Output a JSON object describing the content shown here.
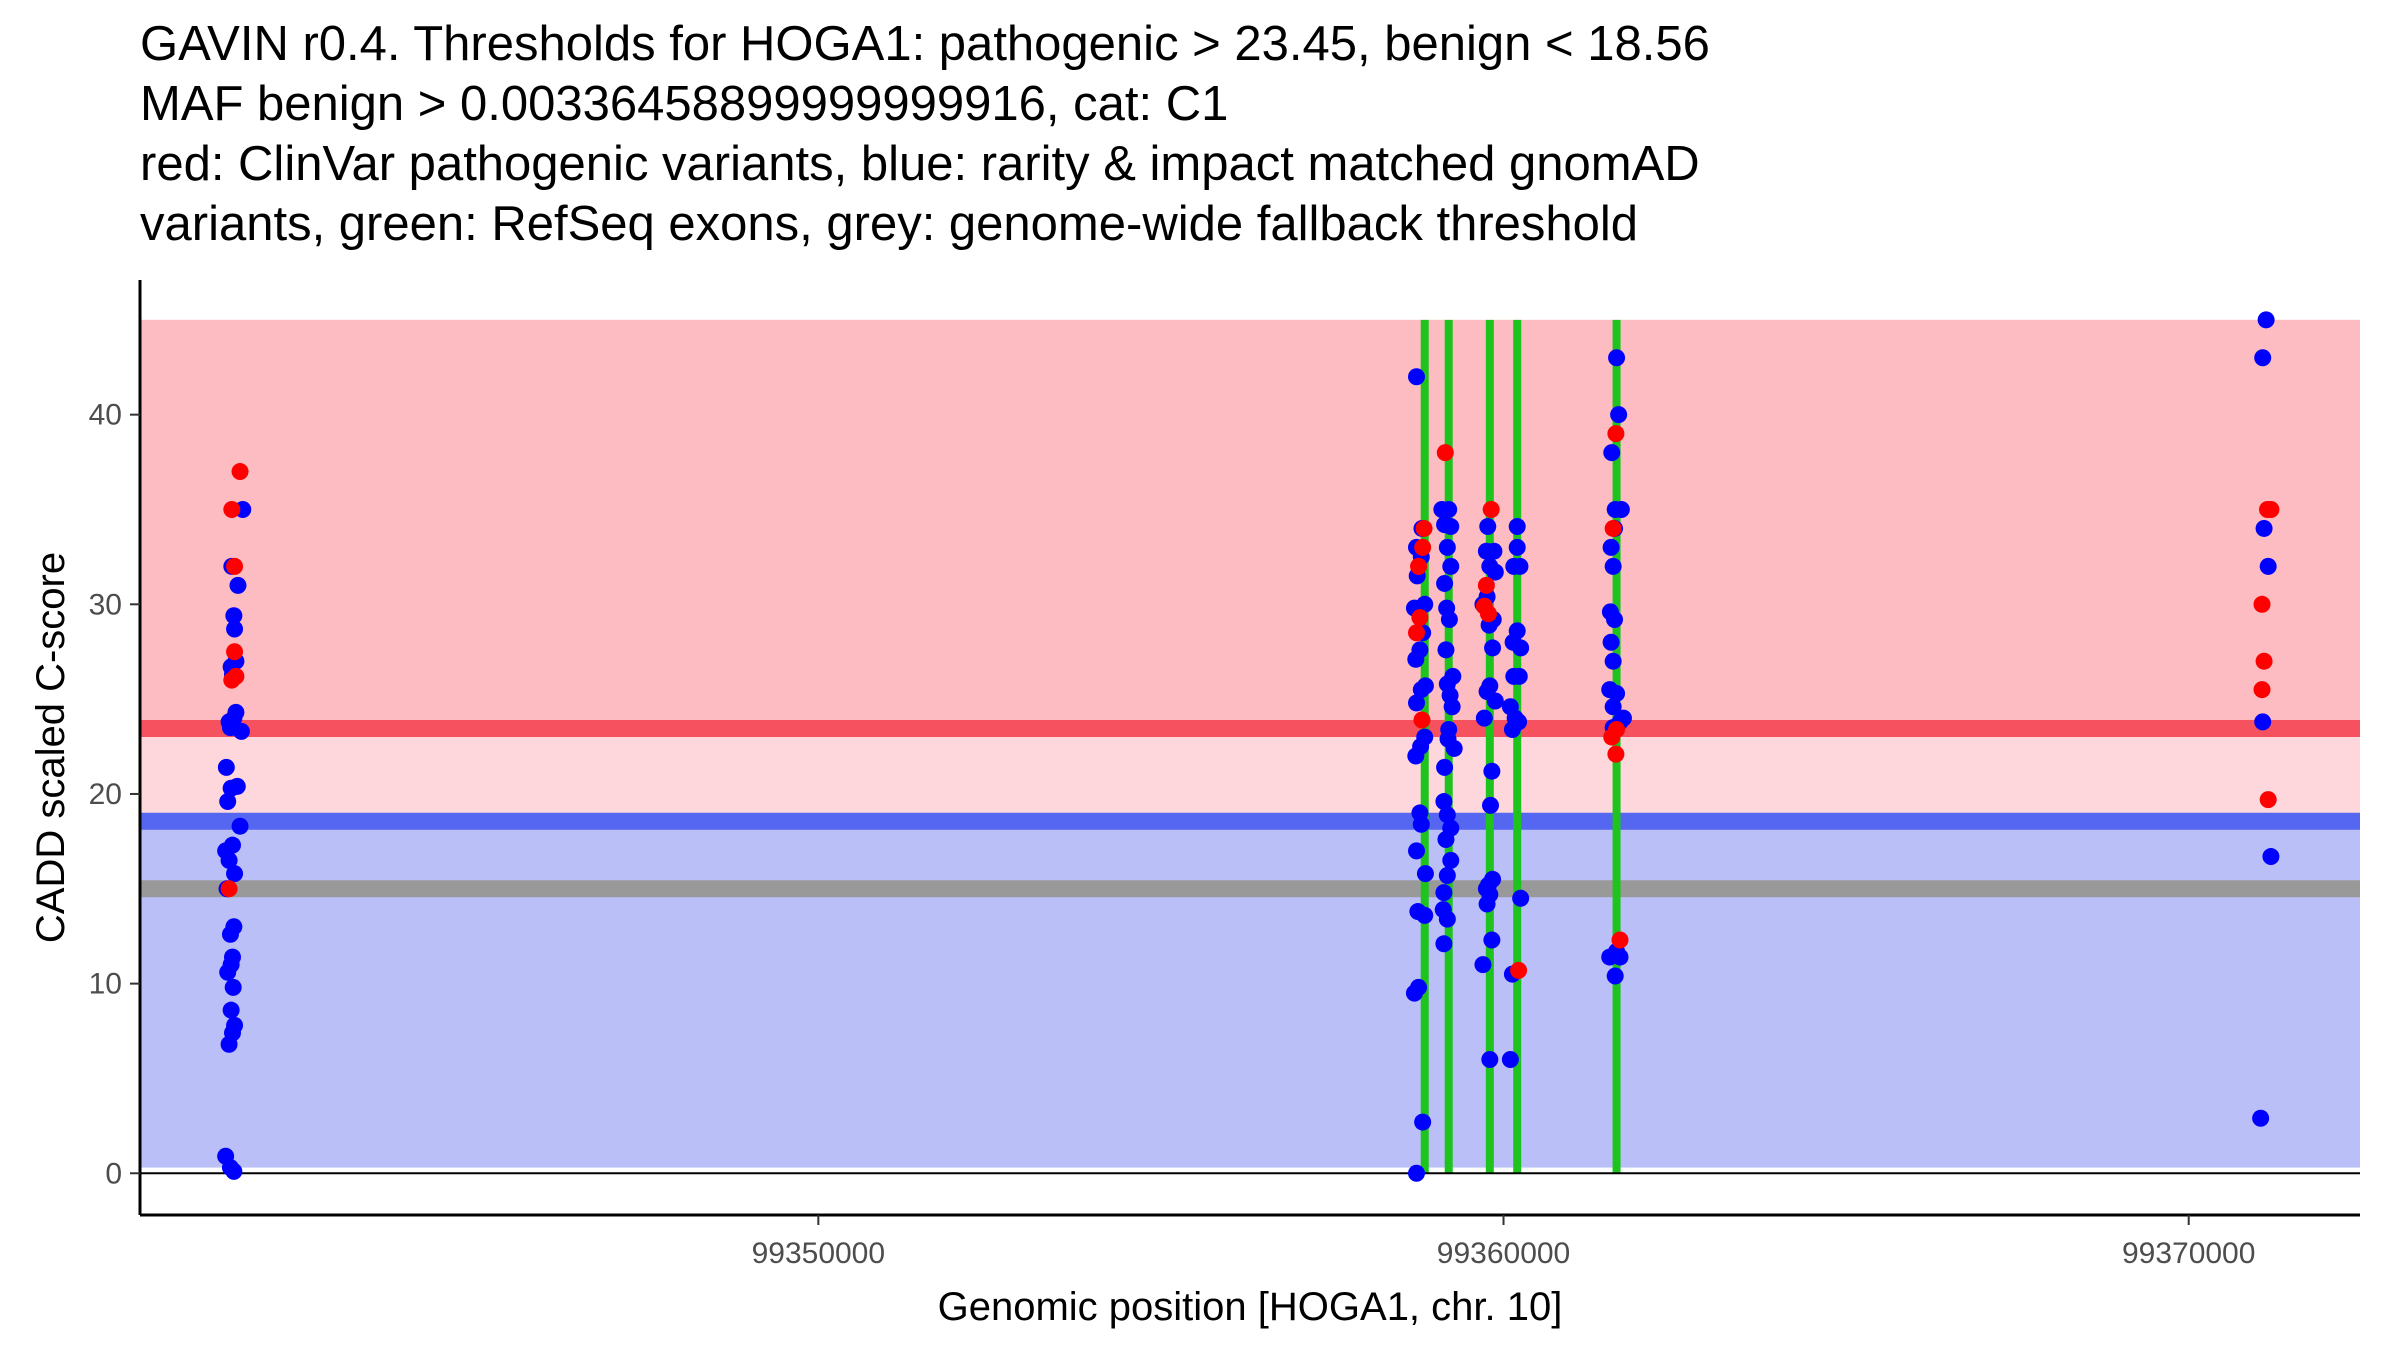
{
  "chart_data": {
    "type": "scatter",
    "title_lines": [
      "GAVIN r0.4. Thresholds for HOGA1: pathogenic > 23.45, benign < 18.56",
      "MAF benign > 0.00336458899999999916, cat: C1",
      "red: ClinVar pathogenic variants, blue: rarity & impact matched gnomAD",
      "variants, green: RefSeq exons, grey: genome-wide fallback threshold"
    ],
    "xlabel": "Genomic position [HOGA1, chr. 10]",
    "ylabel": "CADD scaled C-score",
    "xlim": [
      99340100,
      99372500
    ],
    "ylim": [
      -2.2,
      47.1
    ],
    "xticks": [
      99350000,
      99360000,
      99370000
    ],
    "yticks": [
      0,
      10,
      20,
      30,
      40
    ],
    "regions": [
      {
        "name": "pathogenic-region",
        "from": 23.45,
        "to": 45,
        "color": "#fcbcc1"
      },
      {
        "name": "intermediate-region",
        "from": 18.56,
        "to": 23.45,
        "color": "#fed7dc"
      },
      {
        "name": "benign-region",
        "from": 0.3,
        "to": 18.56,
        "color": "#babff8"
      }
    ],
    "x_span": [
      99340100,
      99372500
    ],
    "thresholds": [
      {
        "name": "pathogenic-threshold",
        "value": 23.45,
        "color": "#f5515f"
      },
      {
        "name": "benign-threshold",
        "value": 18.56,
        "color": "#5566f0"
      },
      {
        "name": "fallback-threshold",
        "value": 15.0,
        "color": "#999999"
      }
    ],
    "exons": {
      "positions": [
        99358850,
        99359200,
        99359800,
        99360200,
        99361650
      ],
      "ymin": 0,
      "ymax": 45,
      "color": "#1ec31e"
    },
    "series": [
      {
        "name": "gnomAD matched variants",
        "color": "#0000ff",
        "points": [
          [
            99341350,
            0.9
          ],
          [
            99341420,
            0.3
          ],
          [
            99341470,
            0.1
          ],
          [
            99341400,
            6.8
          ],
          [
            99341450,
            7.4
          ],
          [
            99341480,
            7.8
          ],
          [
            99341430,
            8.6
          ],
          [
            99341460,
            9.8
          ],
          [
            99341380,
            10.6
          ],
          [
            99341430,
            11.0
          ],
          [
            99341450,
            11.4
          ],
          [
            99341420,
            12.6
          ],
          [
            99341470,
            13.0
          ],
          [
            99341370,
            15.0
          ],
          [
            99341480,
            15.8
          ],
          [
            99341400,
            16.5
          ],
          [
            99341350,
            17.0
          ],
          [
            99341450,
            17.3
          ],
          [
            99341380,
            19.6
          ],
          [
            99341430,
            20.3
          ],
          [
            99341520,
            20.4
          ],
          [
            99341560,
            18.3
          ],
          [
            99341360,
            21.4
          ],
          [
            99341420,
            23.5
          ],
          [
            99341580,
            23.3
          ],
          [
            99341470,
            24.0
          ],
          [
            99341400,
            23.8
          ],
          [
            99341500,
            24.3
          ],
          [
            99341450,
            26.3
          ],
          [
            99341430,
            26.7
          ],
          [
            99341500,
            27.0
          ],
          [
            99341480,
            28.7
          ],
          [
            99341470,
            29.4
          ],
          [
            99341530,
            31.0
          ],
          [
            99341440,
            32.0
          ],
          [
            99341600,
            35.0
          ],
          [
            99358730,
            0.0
          ],
          [
            99358820,
            2.7
          ],
          [
            99358700,
            9.5
          ],
          [
            99358760,
            9.8
          ],
          [
            99358750,
            13.8
          ],
          [
            99358850,
            13.6
          ],
          [
            99358860,
            15.8
          ],
          [
            99358730,
            17.0
          ],
          [
            99358800,
            18.4
          ],
          [
            99358780,
            19.0
          ],
          [
            99358720,
            22.0
          ],
          [
            99358790,
            22.5
          ],
          [
            99358850,
            23.0
          ],
          [
            99358730,
            24.8
          ],
          [
            99358800,
            25.5
          ],
          [
            99358860,
            25.7
          ],
          [
            99358720,
            27.1
          ],
          [
            99358780,
            27.6
          ],
          [
            99358820,
            28.5
          ],
          [
            99358700,
            29.8
          ],
          [
            99358850,
            30.0
          ],
          [
            99358740,
            31.5
          ],
          [
            99358800,
            32.5
          ],
          [
            99358730,
            33.0
          ],
          [
            99358810,
            34.0
          ],
          [
            99358730,
            42.0
          ],
          [
            99359130,
            12.1
          ],
          [
            99359180,
            13.4
          ],
          [
            99359120,
            13.9
          ],
          [
            99359130,
            14.8
          ],
          [
            99359180,
            15.7
          ],
          [
            99359230,
            16.5
          ],
          [
            99359160,
            17.6
          ],
          [
            99359230,
            18.2
          ],
          [
            99359180,
            18.9
          ],
          [
            99359130,
            19.6
          ],
          [
            99359140,
            21.4
          ],
          [
            99359280,
            22.4
          ],
          [
            99359190,
            22.9
          ],
          [
            99359200,
            23.4
          ],
          [
            99359250,
            24.6
          ],
          [
            99359220,
            25.2
          ],
          [
            99359180,
            25.8
          ],
          [
            99359260,
            26.2
          ],
          [
            99359160,
            27.6
          ],
          [
            99359210,
            29.2
          ],
          [
            99359170,
            29.8
          ],
          [
            99359140,
            31.1
          ],
          [
            99359230,
            32.0
          ],
          [
            99359180,
            33.0
          ],
          [
            99359140,
            34.2
          ],
          [
            99359230,
            34.1
          ],
          [
            99359200,
            35.0
          ],
          [
            99359100,
            35.0
          ],
          [
            99359800,
            6.0
          ],
          [
            99359700,
            11.0
          ],
          [
            99359830,
            12.3
          ],
          [
            99359760,
            14.2
          ],
          [
            99359840,
            15.5
          ],
          [
            99359800,
            14.7
          ],
          [
            99359750,
            15.0
          ],
          [
            99359780,
            15.2
          ],
          [
            99359810,
            19.4
          ],
          [
            99359830,
            21.2
          ],
          [
            99359720,
            24.0
          ],
          [
            99359880,
            24.9
          ],
          [
            99359760,
            25.4
          ],
          [
            99359800,
            25.7
          ],
          [
            99359840,
            27.7
          ],
          [
            99359790,
            28.9
          ],
          [
            99359850,
            29.2
          ],
          [
            99359700,
            30.0
          ],
          [
            99359760,
            30.4
          ],
          [
            99359880,
            31.7
          ],
          [
            99359800,
            32.0
          ],
          [
            99359750,
            32.8
          ],
          [
            99359860,
            32.8
          ],
          [
            99359770,
            34.1
          ],
          [
            99360100,
            6.0
          ],
          [
            99360130,
            10.5
          ],
          [
            99360250,
            14.5
          ],
          [
            99360130,
            23.4
          ],
          [
            99360220,
            23.8
          ],
          [
            99360170,
            24.0
          ],
          [
            99360100,
            24.6
          ],
          [
            99360230,
            26.2
          ],
          [
            99360150,
            26.2
          ],
          [
            99360250,
            27.7
          ],
          [
            99360140,
            28.0
          ],
          [
            99360200,
            28.6
          ],
          [
            99360150,
            32.0
          ],
          [
            99360240,
            32.0
          ],
          [
            99360200,
            33.0
          ],
          [
            99360200,
            34.1
          ],
          [
            99361550,
            11.4
          ],
          [
            99361630,
            10.4
          ],
          [
            99361700,
            11.4
          ],
          [
            99361650,
            11.7
          ],
          [
            99361600,
            23.5
          ],
          [
            99361700,
            23.8
          ],
          [
            99361750,
            24.0
          ],
          [
            99361600,
            24.6
          ],
          [
            99361650,
            25.3
          ],
          [
            99361550,
            25.5
          ],
          [
            99361600,
            27.0
          ],
          [
            99361570,
            28.0
          ],
          [
            99361620,
            29.2
          ],
          [
            99361560,
            29.6
          ],
          [
            99361600,
            32.0
          ],
          [
            99361570,
            33.0
          ],
          [
            99361620,
            34.0
          ],
          [
            99361630,
            35.0
          ],
          [
            99361720,
            35.0
          ],
          [
            99361580,
            38.0
          ],
          [
            99361680,
            40.0
          ],
          [
            99361650,
            43.0
          ],
          [
            99371050,
            2.9
          ],
          [
            99371200,
            16.7
          ],
          [
            99371080,
            23.8
          ],
          [
            99371160,
            32.0
          ],
          [
            99371100,
            34.0
          ],
          [
            99371080,
            43.0
          ],
          [
            99371130,
            45.0
          ]
        ]
      },
      {
        "name": "ClinVar pathogenic variants",
        "color": "#ff0000",
        "points": [
          [
            99341400,
            15.0
          ],
          [
            99341440,
            26.0
          ],
          [
            99341500,
            26.2
          ],
          [
            99341480,
            27.5
          ],
          [
            99341480,
            32.0
          ],
          [
            99341440,
            35.0
          ],
          [
            99341560,
            37.0
          ],
          [
            99358730,
            28.5
          ],
          [
            99358810,
            23.9
          ],
          [
            99358780,
            29.3
          ],
          [
            99358760,
            32.0
          ],
          [
            99358820,
            33.0
          ],
          [
            99358840,
            34.0
          ],
          [
            99359150,
            38.0
          ],
          [
            99359720,
            29.9
          ],
          [
            99359780,
            29.5
          ],
          [
            99359750,
            31.0
          ],
          [
            99359820,
            35.0
          ],
          [
            99360220,
            10.7
          ],
          [
            99361580,
            23.0
          ],
          [
            99361650,
            23.4
          ],
          [
            99361640,
            22.1
          ],
          [
            99361700,
            12.3
          ],
          [
            99361600,
            34.0
          ],
          [
            99361640,
            39.0
          ],
          [
            99371070,
            25.5
          ],
          [
            99371100,
            27.0
          ],
          [
            99371070,
            30.0
          ],
          [
            99371160,
            19.7
          ],
          [
            99371150,
            35.0
          ],
          [
            99371200,
            35.0
          ]
        ]
      }
    ]
  }
}
